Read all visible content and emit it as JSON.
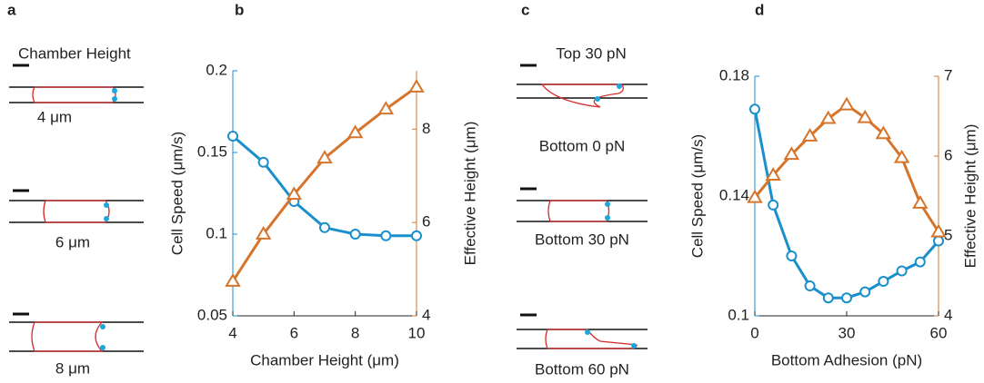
{
  "panel_a": {
    "label": "a",
    "title": "Chamber Height",
    "items": [
      "4 μm",
      "6 μm",
      "8 μm"
    ]
  },
  "panel_c": {
    "label": "c",
    "top": "Top 30 pN",
    "items": [
      "Bottom 0 pN",
      "Bottom 30 pN",
      "Bottom 60 pN"
    ]
  },
  "chart_data": [
    {
      "type": "line",
      "panel_label": "b",
      "xlabel": "Chamber Height (μm)",
      "ylabel": "Cell Speed (μm/s)",
      "y2label": "Effective Height (μm)",
      "x": [
        4,
        5,
        6,
        7,
        8,
        9,
        10
      ],
      "xlim": [
        4,
        10
      ],
      "xticks": [
        4,
        6,
        8,
        10
      ],
      "ylim": [
        0.05,
        0.2
      ],
      "yticks": [
        0.05,
        0.1,
        0.15,
        0.2
      ],
      "y2lim": [
        4,
        9.25
      ],
      "y2ticks": [
        4,
        6,
        8
      ],
      "series": [
        {
          "color": "#1a8fcb",
          "marker": "circle",
          "axis": "y",
          "values": [
            0.16,
            0.144,
            0.12,
            0.104,
            0.1,
            0.099,
            0.099
          ]
        },
        {
          "color": "#d5742a",
          "marker": "triangle",
          "axis": "y2",
          "values": [
            4.74,
            5.75,
            6.6,
            7.38,
            7.92,
            8.43,
            8.9
          ]
        }
      ]
    },
    {
      "type": "line",
      "panel_label": "d",
      "xlabel": "Bottom Adhesion (pN)",
      "ylabel": "Cell Speed (μm/s)",
      "y2label": "Effective Height (μm)",
      "x": [
        0,
        6,
        12,
        18,
        24,
        30,
        36,
        42,
        48,
        54,
        60
      ],
      "xlim": [
        0,
        60
      ],
      "xticks": [
        0,
        30,
        60
      ],
      "ylim": [
        0.1,
        0.18
      ],
      "yticks": [
        0.1,
        0.14,
        0.18
      ],
      "y2lim": [
        4,
        7
      ],
      "y2ticks": [
        4,
        5,
        6,
        7
      ],
      "series": [
        {
          "color": "#1a8fcb",
          "marker": "circle",
          "axis": "y",
          "values": [
            0.169,
            0.137,
            0.12,
            0.11,
            0.106,
            0.106,
            0.108,
            0.1115,
            0.115,
            0.118,
            0.125
          ]
        },
        {
          "color": "#d5742a",
          "marker": "triangle",
          "axis": "y2",
          "values": [
            5.48,
            5.76,
            6.02,
            6.25,
            6.47,
            6.64,
            6.48,
            6.28,
            5.98,
            5.41,
            5.05
          ]
        }
      ]
    }
  ]
}
